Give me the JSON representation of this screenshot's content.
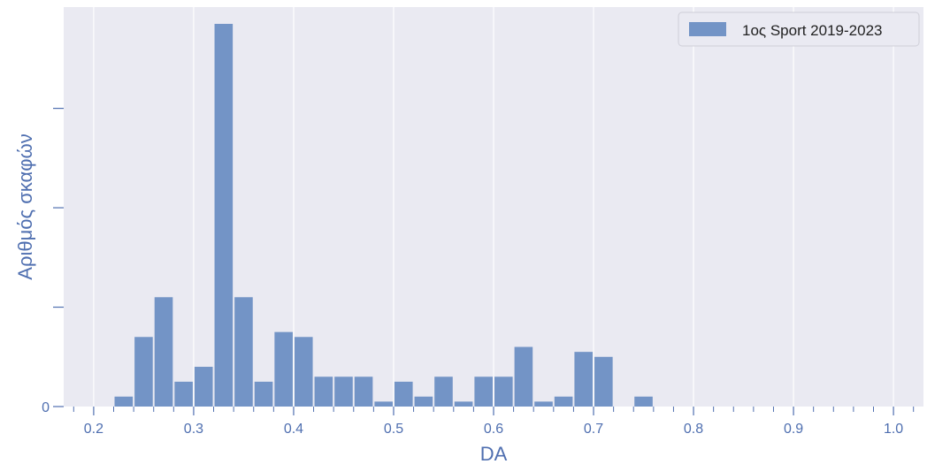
{
  "chart_data": {
    "type": "bar",
    "title": "",
    "xlabel": "DA",
    "ylabel": "Αριθμός σκαφών",
    "xlim": [
      0.17,
      1.03
    ],
    "ylim": [
      0,
      77
    ],
    "x_ticks": [
      0.2,
      0.3,
      0.4,
      0.5,
      0.6,
      0.7,
      0.8,
      0.9,
      1.0
    ],
    "x_tick_labels": [
      "0.2",
      "0.3",
      "0.4",
      "0.5",
      "0.6",
      "0.7",
      "0.8",
      "0.9",
      "1.0"
    ],
    "y_ticks": [
      0,
      20,
      40,
      60
    ],
    "y_tick_labels": [
      "0",
      "",
      "",
      ""
    ],
    "grid": true,
    "legend_position": "top-right",
    "bin_width": 0.02,
    "series": [
      {
        "name": "1ος Sport 2019-2023",
        "color": "#7394c6",
        "bins": [
          {
            "x": 0.23,
            "value": 2
          },
          {
            "x": 0.25,
            "value": 14
          },
          {
            "x": 0.27,
            "value": 22
          },
          {
            "x": 0.29,
            "value": 5
          },
          {
            "x": 0.31,
            "value": 8
          },
          {
            "x": 0.33,
            "value": 77
          },
          {
            "x": 0.35,
            "value": 22
          },
          {
            "x": 0.37,
            "value": 5
          },
          {
            "x": 0.39,
            "value": 15
          },
          {
            "x": 0.41,
            "value": 14
          },
          {
            "x": 0.43,
            "value": 6
          },
          {
            "x": 0.45,
            "value": 6
          },
          {
            "x": 0.47,
            "value": 6
          },
          {
            "x": 0.49,
            "value": 1
          },
          {
            "x": 0.51,
            "value": 5
          },
          {
            "x": 0.53,
            "value": 2
          },
          {
            "x": 0.55,
            "value": 6
          },
          {
            "x": 0.57,
            "value": 1
          },
          {
            "x": 0.59,
            "value": 6
          },
          {
            "x": 0.61,
            "value": 6
          },
          {
            "x": 0.63,
            "value": 12
          },
          {
            "x": 0.65,
            "value": 1
          },
          {
            "x": 0.67,
            "value": 2
          },
          {
            "x": 0.69,
            "value": 11
          },
          {
            "x": 0.71,
            "value": 10
          },
          {
            "x": 0.75,
            "value": 2
          }
        ]
      }
    ]
  }
}
